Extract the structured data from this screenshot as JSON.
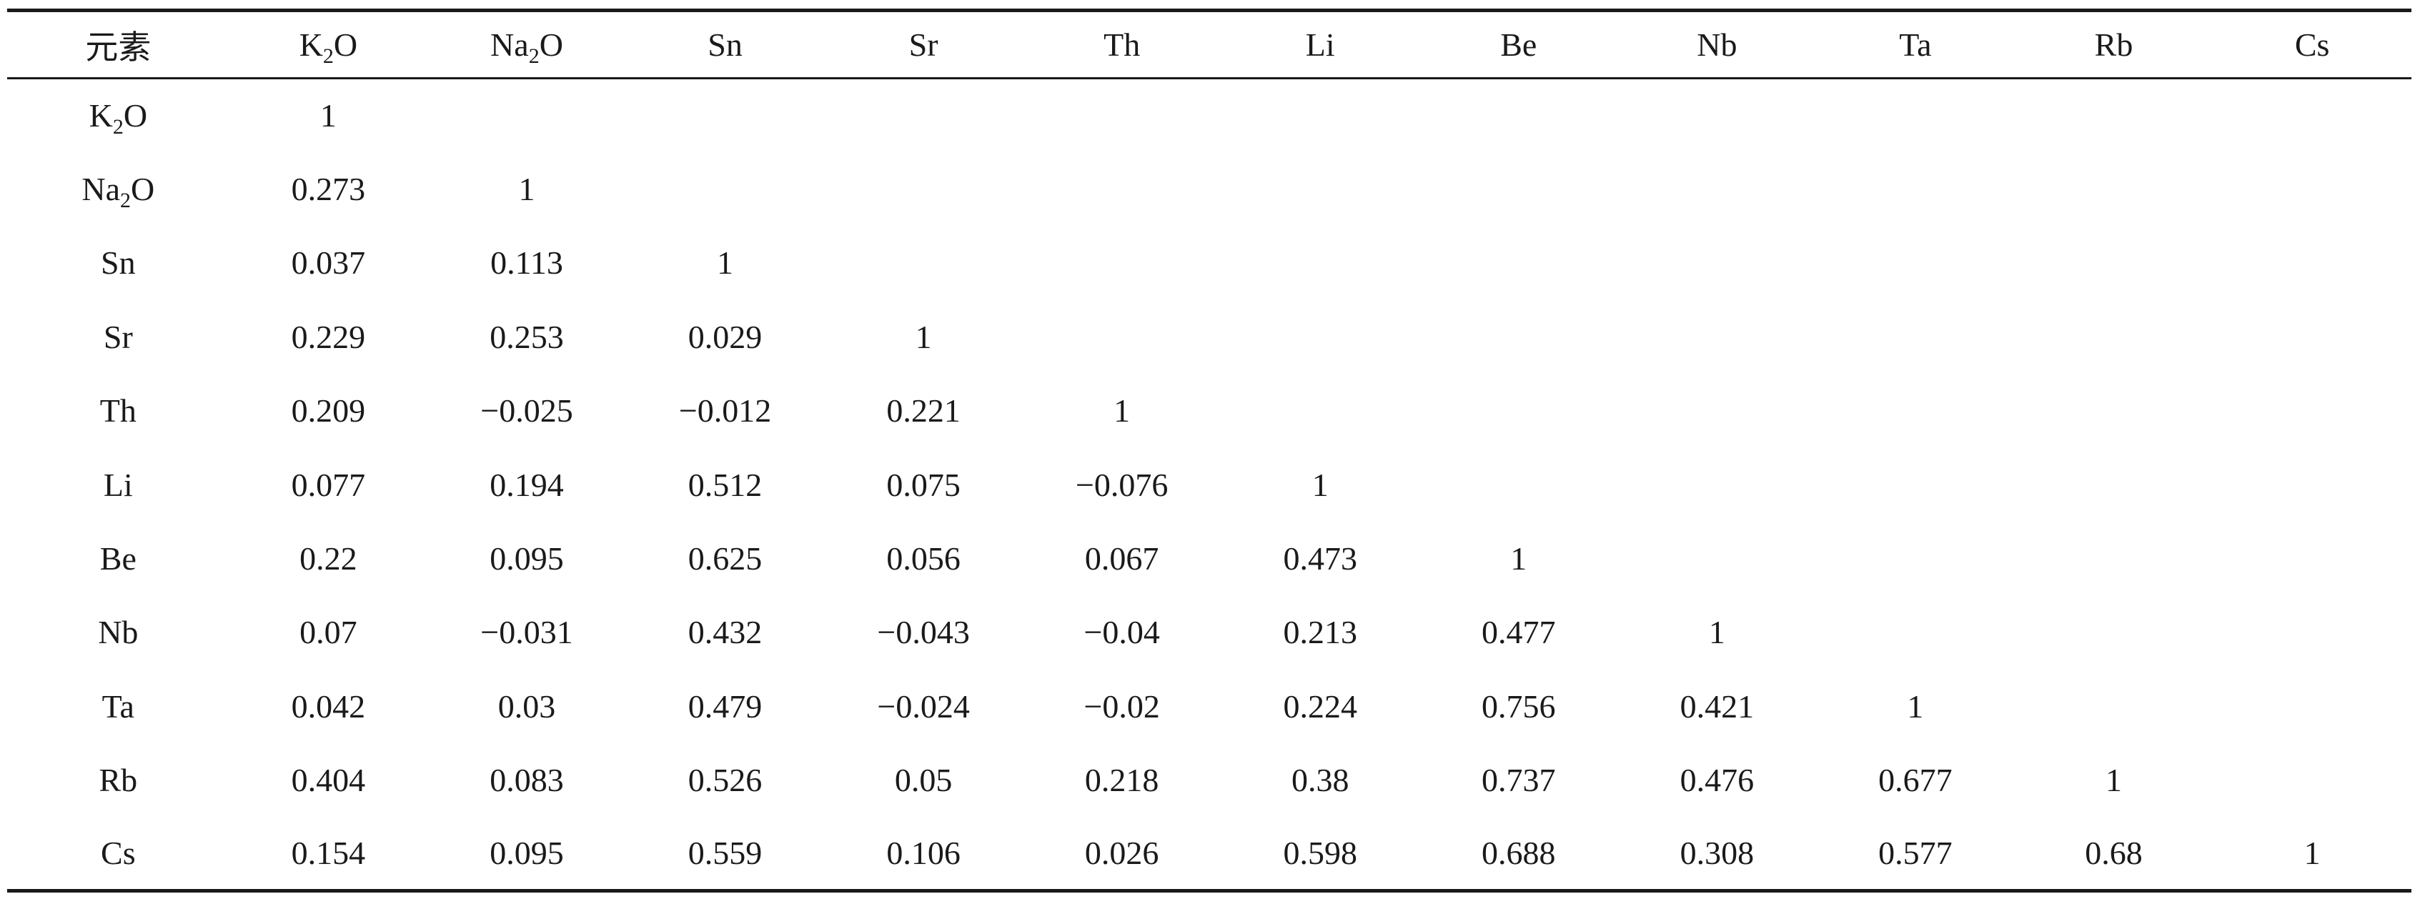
{
  "table": {
    "corner_header": "元素",
    "columns": [
      {
        "base": "K",
        "sub": "2",
        "tail": "O"
      },
      {
        "base": "Na",
        "sub": "2",
        "tail": "O"
      },
      {
        "base": "Sn",
        "sub": "",
        "tail": ""
      },
      {
        "base": "Sr",
        "sub": "",
        "tail": ""
      },
      {
        "base": "Th",
        "sub": "",
        "tail": ""
      },
      {
        "base": "Li",
        "sub": "",
        "tail": ""
      },
      {
        "base": "Be",
        "sub": "",
        "tail": ""
      },
      {
        "base": "Nb",
        "sub": "",
        "tail": ""
      },
      {
        "base": "Ta",
        "sub": "",
        "tail": ""
      },
      {
        "base": "Rb",
        "sub": "",
        "tail": ""
      },
      {
        "base": "Cs",
        "sub": "",
        "tail": ""
      }
    ],
    "rows": [
      {
        "label": {
          "base": "K",
          "sub": "2",
          "tail": "O"
        },
        "values": [
          "1",
          "",
          "",
          "",
          "",
          "",
          "",
          "",
          "",
          "",
          ""
        ]
      },
      {
        "label": {
          "base": "Na",
          "sub": "2",
          "tail": "O"
        },
        "values": [
          "0.273",
          "1",
          "",
          "",
          "",
          "",
          "",
          "",
          "",
          "",
          ""
        ]
      },
      {
        "label": {
          "base": "Sn",
          "sub": "",
          "tail": ""
        },
        "values": [
          "0.037",
          "0.113",
          "1",
          "",
          "",
          "",
          "",
          "",
          "",
          "",
          ""
        ]
      },
      {
        "label": {
          "base": "Sr",
          "sub": "",
          "tail": ""
        },
        "values": [
          "0.229",
          "0.253",
          "0.029",
          "1",
          "",
          "",
          "",
          "",
          "",
          "",
          ""
        ]
      },
      {
        "label": {
          "base": "Th",
          "sub": "",
          "tail": ""
        },
        "values": [
          "0.209",
          "−0.025",
          "−0.012",
          "0.221",
          "1",
          "",
          "",
          "",
          "",
          "",
          ""
        ]
      },
      {
        "label": {
          "base": "Li",
          "sub": "",
          "tail": ""
        },
        "values": [
          "0.077",
          "0.194",
          "0.512",
          "0.075",
          "−0.076",
          "1",
          "",
          "",
          "",
          "",
          ""
        ]
      },
      {
        "label": {
          "base": "Be",
          "sub": "",
          "tail": ""
        },
        "values": [
          "0.22",
          "0.095",
          "0.625",
          "0.056",
          "0.067",
          "0.473",
          "1",
          "",
          "",
          "",
          ""
        ]
      },
      {
        "label": {
          "base": "Nb",
          "sub": "",
          "tail": ""
        },
        "values": [
          "0.07",
          "−0.031",
          "0.432",
          "−0.043",
          "−0.04",
          "0.213",
          "0.477",
          "1",
          "",
          "",
          ""
        ]
      },
      {
        "label": {
          "base": "Ta",
          "sub": "",
          "tail": ""
        },
        "values": [
          "0.042",
          "0.03",
          "0.479",
          "−0.024",
          "−0.02",
          "0.224",
          "0.756",
          "0.421",
          "1",
          "",
          ""
        ]
      },
      {
        "label": {
          "base": "Rb",
          "sub": "",
          "tail": ""
        },
        "values": [
          "0.404",
          "0.083",
          "0.526",
          "0.05",
          "0.218",
          "0.38",
          "0.737",
          "0.476",
          "0.677",
          "1",
          ""
        ]
      },
      {
        "label": {
          "base": "Cs",
          "sub": "",
          "tail": ""
        },
        "values": [
          "0.154",
          "0.095",
          "0.559",
          "0.106",
          "0.026",
          "0.598",
          "0.688",
          "0.308",
          "0.577",
          "0.68",
          "1"
        ]
      }
    ]
  },
  "colors": {
    "text": "#1a1a1a",
    "rule": "#1a1a1a",
    "background": "#ffffff"
  }
}
